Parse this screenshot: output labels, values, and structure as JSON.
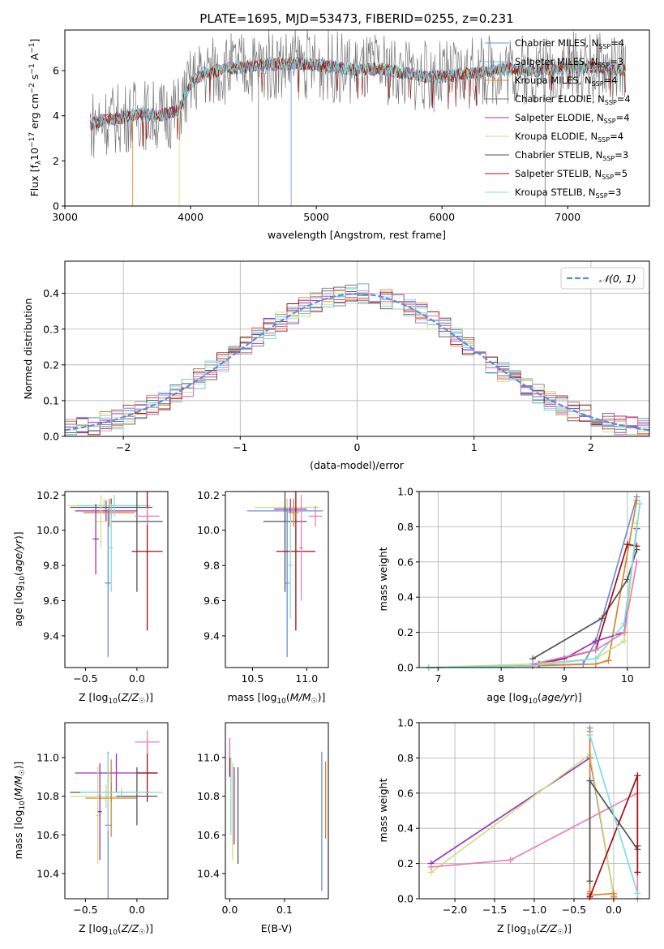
{
  "figure_title": "PLATE=1695, MJD=53473, FIBERID=0255, z=0.231",
  "colors": {
    "chabrier_miles": "#6b8fe0",
    "salpeter_miles": "#7fb8d9",
    "kroupa_miles": "#e0802a",
    "chabrier_elodie": "#777777",
    "salpeter_elodie": "#9b30c0",
    "kroupa_elodie": "#cfe07a",
    "chabrier_stelib": "#555555",
    "salpeter_stelib": "#a01010",
    "kroupa_stelib": "#7fdde0",
    "pink": "#e67fb8",
    "gauss": "#5b8dd9"
  },
  "chart_data": [
    {
      "id": "spectrum",
      "type": "line",
      "xlabel": "wavelength [Angstrom, rest frame]",
      "ylabel": "Flux [f_λ 10^-17 erg cm^-2 s^-1 A^-1]",
      "xlim": [
        3000,
        7650
      ],
      "ylim": [
        0,
        7.8
      ],
      "xticks": [
        "3000",
        "4000",
        "5000",
        "6000",
        "7000"
      ],
      "yticks": [
        "0",
        "2",
        "4",
        "6"
      ],
      "legend_position": "right",
      "legend": [
        {
          "label": "Chabrier MILES, N_SSP=4",
          "color": "#6b8fe0"
        },
        {
          "label": "Salpeter MILES, N_SSP=3",
          "color": "#7fb8d9"
        },
        {
          "label": "Kroupa MILES, N_SSP=4",
          "color": "#e0802a"
        },
        {
          "label": "Chabrier ELODIE, N_SSP=4",
          "color": "#777777"
        },
        {
          "label": "Salpeter ELODIE, N_SSP=4",
          "color": "#9b30c0"
        },
        {
          "label": "Kroupa ELODIE, N_SSP=4",
          "color": "#cfe07a"
        },
        {
          "label": "Chabrier STELIB, N_SSP=3",
          "color": "#555555"
        },
        {
          "label": "Salpeter STELIB, N_SSP=5",
          "color": "#a01010"
        },
        {
          "label": "Kroupa STELIB, N_SSP=3",
          "color": "#7fdde0"
        }
      ],
      "continuum": [
        [
          3200,
          3.6
        ],
        [
          3300,
          3.8
        ],
        [
          3450,
          3.9
        ],
        [
          3600,
          4.1
        ],
        [
          3750,
          4.0
        ],
        [
          3900,
          4.2
        ],
        [
          4000,
          5.4
        ],
        [
          4100,
          5.9
        ],
        [
          4300,
          6.1
        ],
        [
          4500,
          6.2
        ],
        [
          4700,
          6.3
        ],
        [
          4900,
          6.3
        ],
        [
          5100,
          6.2
        ],
        [
          5300,
          6.0
        ],
        [
          5500,
          6.1
        ],
        [
          5700,
          5.9
        ],
        [
          5900,
          5.7
        ],
        [
          6100,
          5.8
        ],
        [
          6300,
          5.9
        ],
        [
          6500,
          6.1
        ],
        [
          6700,
          6.0
        ],
        [
          6900,
          6.1
        ],
        [
          7100,
          6.2
        ],
        [
          7300,
          6.1
        ],
        [
          7450,
          6.0
        ]
      ]
    },
    {
      "id": "residuals",
      "type": "step",
      "xlabel": "(data-model)/error",
      "ylabel": "Normed distribution",
      "xlim": [
        -2.5,
        2.5
      ],
      "ylim": [
        0,
        0.49
      ],
      "xticks": [
        "−2",
        "−1",
        "0",
        "1",
        "2"
      ],
      "yticks": [
        "0.0",
        "0.1",
        "0.2",
        "0.3",
        "0.4"
      ],
      "grid": true,
      "legend_label": "𝒩(0, 1)",
      "legend_position": "top-right"
    },
    {
      "id": "age_vs_Z",
      "type": "errorbar",
      "xlabel": "Z [log10(Z/Z☉)]",
      "ylabel": "age  [log10(age/yr)]",
      "xlim": [
        -0.7,
        0.3
      ],
      "ylim": [
        9.22,
        10.22
      ],
      "xticks": [
        "−0.5",
        "0.0"
      ],
      "yticks": [
        "9.4",
        "9.6",
        "9.8",
        "10.0",
        "10.2"
      ],
      "points": [
        {
          "x": -0.32,
          "y": 10.14,
          "xerr": 0.35,
          "yerr": 0.04,
          "color": "#cfe07a"
        },
        {
          "x": -0.25,
          "y": 10.13,
          "xerr": 0.4,
          "yerr": 0.05,
          "color": "#555555"
        },
        {
          "x": -0.3,
          "y": 10.11,
          "xerr": 0.3,
          "yerr": 0.06,
          "color": "#9b30c0"
        },
        {
          "x": -0.27,
          "y": 10.1,
          "xerr": 0.25,
          "yerr": 0.08,
          "color": "#e0802a"
        },
        {
          "x": -0.22,
          "y": 10.14,
          "xerr": 0.35,
          "yerr": 0.06,
          "color": "#7fdde0"
        },
        {
          "x": -0.35,
          "y": 10.05,
          "xerr": 0.05,
          "yerr": 0.15,
          "color": "#cfe07a"
        },
        {
          "x": -0.4,
          "y": 9.95,
          "xerr": 0.03,
          "yerr": 0.2,
          "color": "#9b30c0"
        },
        {
          "x": -0.28,
          "y": 9.7,
          "xerr": 0.03,
          "yerr": 0.42,
          "color": "#6b8fe0"
        },
        {
          "x": 0.0,
          "y": 10.05,
          "xerr": 0.25,
          "yerr": 0.4,
          "color": "#555555"
        },
        {
          "x": 0.1,
          "y": 9.88,
          "xerr": 0.15,
          "yerr": 0.45,
          "color": "#a01010"
        },
        {
          "x": 0.1,
          "y": 10.08,
          "xerr": 0.12,
          "yerr": 0.05,
          "color": "#e67fb8"
        },
        {
          "x": -0.25,
          "y": 9.9,
          "xerr": 0.02,
          "yerr": 0.25,
          "color": "#7fdde0"
        }
      ]
    },
    {
      "id": "age_vs_mass",
      "type": "errorbar",
      "xlabel": "mass [log10(M/M☉)]",
      "ylabel": "",
      "xlim": [
        10.25,
        11.2
      ],
      "ylim": [
        9.22,
        10.22
      ],
      "xticks": [
        "10.5",
        "11.0"
      ],
      "yticks": [
        "9.4",
        "9.6",
        "9.8",
        "10.0",
        "10.2"
      ],
      "points": [
        {
          "x": 10.82,
          "y": 10.13,
          "xerr": 0.3,
          "yerr": 0.05,
          "color": "#cfe07a"
        },
        {
          "x": 10.8,
          "y": 10.11,
          "xerr": 0.35,
          "yerr": 0.06,
          "color": "#6b8fe0"
        },
        {
          "x": 10.85,
          "y": 10.12,
          "xerr": 0.15,
          "yerr": 0.06,
          "color": "#9b30c0"
        },
        {
          "x": 10.8,
          "y": 10.05,
          "xerr": 0.2,
          "yerr": 0.4,
          "color": "#555555"
        },
        {
          "x": 10.82,
          "y": 9.7,
          "xerr": 0.02,
          "yerr": 0.42,
          "color": "#6b8fe0"
        },
        {
          "x": 10.9,
          "y": 9.88,
          "xerr": 0.18,
          "yerr": 0.45,
          "color": "#a01010"
        },
        {
          "x": 11.08,
          "y": 10.08,
          "xerr": 0.06,
          "yerr": 0.06,
          "color": "#e67fb8"
        },
        {
          "x": 10.95,
          "y": 9.9,
          "xerr": 0.02,
          "yerr": 0.3,
          "color": "#e67fb8"
        },
        {
          "x": 10.85,
          "y": 9.8,
          "xerr": 0.02,
          "yerr": 0.3,
          "color": "#7fdde0"
        },
        {
          "x": 10.88,
          "y": 10.1,
          "xerr": 0.05,
          "yerr": 0.08,
          "color": "#e0802a"
        }
      ]
    },
    {
      "id": "cumulative_age",
      "type": "line",
      "xlabel": "age  [log10(age/yr)]",
      "ylabel": "mass weight",
      "xlim": [
        6.7,
        10.35
      ],
      "ylim": [
        0,
        1
      ],
      "xticks": [
        "7",
        "8",
        "9",
        "10"
      ],
      "yticks": [
        "0.0",
        "0.2",
        "0.4",
        "0.6",
        "0.8",
        "1.0"
      ],
      "grid": true,
      "series": [
        {
          "color": "#6b8fe0",
          "x": [
            6.85,
            8.5,
            9.3,
            9.5,
            10.15
          ],
          "y": [
            0.0,
            0.01,
            0.02,
            0.15,
            0.97
          ]
        },
        {
          "color": "#e0802a",
          "x": [
            6.85,
            8.5,
            9.5,
            9.7,
            10.15
          ],
          "y": [
            0.0,
            0.01,
            0.02,
            0.04,
            0.95
          ]
        },
        {
          "color": "#555555",
          "x": [
            8.5,
            9.6,
            10.0,
            10.15
          ],
          "y": [
            0.05,
            0.28,
            0.5,
            0.67
          ]
        },
        {
          "color": "#a01010",
          "x": [
            8.5,
            8.6,
            9.5,
            10.0,
            10.15
          ],
          "y": [
            0.01,
            0.02,
            0.1,
            0.7,
            0.69
          ]
        },
        {
          "color": "#9b30c0",
          "x": [
            8.5,
            9.0,
            9.5,
            9.95,
            10.15
          ],
          "y": [
            0.01,
            0.05,
            0.15,
            0.2,
            0.79
          ]
        },
        {
          "color": "#cfe07a",
          "x": [
            6.85,
            8.5,
            9.5,
            9.95,
            10.15
          ],
          "y": [
            0.0,
            0.02,
            0.05,
            0.15,
            0.82
          ]
        },
        {
          "color": "#7fdde0",
          "x": [
            6.85,
            8.5,
            9.5,
            9.95,
            10.2
          ],
          "y": [
            0.0,
            0.01,
            0.05,
            0.25,
            0.93
          ]
        },
        {
          "color": "#e67fb8",
          "x": [
            8.5,
            9.5,
            9.95,
            10.15
          ],
          "y": [
            0.02,
            0.1,
            0.2,
            0.6
          ]
        }
      ]
    },
    {
      "id": "mass_vs_Z",
      "type": "errorbar",
      "xlabel": "Z [log10(Z/Z☉)]",
      "ylabel": "mass [log10(M/M☉)]",
      "xlim": [
        -0.7,
        0.3
      ],
      "ylim": [
        10.27,
        11.18
      ],
      "xticks": [
        "−0.5",
        "0.0"
      ],
      "yticks": [
        "10.4",
        "10.6",
        "10.8",
        "11.0"
      ],
      "points": [
        {
          "x": -0.2,
          "y": 10.92,
          "xerr": 0.4,
          "yerr": 0.1,
          "color": "#9b30c0"
        },
        {
          "x": 0.1,
          "y": 10.92,
          "xerr": 0.1,
          "yerr": 0.15,
          "color": "#a01010"
        },
        {
          "x": 0.1,
          "y": 11.08,
          "xerr": 0.12,
          "yerr": 0.06,
          "color": "#e67fb8"
        },
        {
          "x": -0.25,
          "y": 10.82,
          "xerr": 0.4,
          "yerr": 0.05,
          "color": "#555555"
        },
        {
          "x": -0.3,
          "y": 10.8,
          "xerr": 0.35,
          "yerr": 0.06,
          "color": "#cfe07a"
        },
        {
          "x": -0.25,
          "y": 10.79,
          "xerr": 0.25,
          "yerr": 0.2,
          "color": "#e0802a"
        },
        {
          "x": -0.28,
          "y": 10.65,
          "xerr": 0.03,
          "yerr": 0.38,
          "color": "#6b8fe0"
        },
        {
          "x": -0.38,
          "y": 10.7,
          "xerr": 0.02,
          "yerr": 0.25,
          "color": "#cfe07a"
        },
        {
          "x": -0.36,
          "y": 10.72,
          "xerr": 0.02,
          "yerr": 0.25,
          "color": "#9b30c0"
        },
        {
          "x": -0.28,
          "y": 10.82,
          "xerr": 0.02,
          "yerr": 0.2,
          "color": "#7fdde0"
        },
        {
          "x": 0.0,
          "y": 10.8,
          "xerr": 0.2,
          "yerr": 0.15,
          "color": "#555555"
        },
        {
          "x": -0.15,
          "y": 10.82,
          "xerr": 0.4,
          "yerr": 0.02,
          "color": "#7fdde0"
        }
      ]
    },
    {
      "id": "mass_vs_ebv",
      "type": "errorbar",
      "xlabel": "E(B-V)",
      "ylabel": "",
      "xlim": [
        -0.008,
        0.18
      ],
      "ylim": [
        10.27,
        11.18
      ],
      "xticks": [
        "0.0",
        "0.1"
      ],
      "yticks": [
        "10.4",
        "10.6",
        "10.8",
        "11.0"
      ],
      "points": [
        {
          "x": 0.0,
          "y": 11.0,
          "xerr": 0.0,
          "yerr": 0.1,
          "color": "#a01010"
        },
        {
          "x": 0.0,
          "y": 11.05,
          "xerr": 0.0,
          "yerr": 0.05,
          "color": "#e67fb8"
        },
        {
          "x": 0.005,
          "y": 10.72,
          "xerr": 0.0,
          "yerr": 0.25,
          "color": "#cfe07a"
        },
        {
          "x": 0.008,
          "y": 10.75,
          "xerr": 0.0,
          "yerr": 0.2,
          "color": "#9b30c0"
        },
        {
          "x": 0.015,
          "y": 10.7,
          "xerr": 0.0,
          "yerr": 0.25,
          "color": "#555555"
        },
        {
          "x": 0.002,
          "y": 10.8,
          "xerr": 0.0,
          "yerr": 0.2,
          "color": "#7fdde0"
        },
        {
          "x": 0.168,
          "y": 10.67,
          "xerr": 0.0,
          "yerr": 0.36,
          "color": "#6b8fe0"
        },
        {
          "x": 0.175,
          "y": 10.78,
          "xerr": 0.0,
          "yerr": 0.2,
          "color": "#e0802a"
        }
      ]
    },
    {
      "id": "cumulative_Z",
      "type": "line",
      "xlabel": "Z [log10(Z/Z☉)]",
      "ylabel": "mass weight",
      "xlim": [
        -2.45,
        0.45
      ],
      "ylim": [
        0,
        1
      ],
      "xticks": [
        "−2.0",
        "−1.5",
        "−1.0",
        "−0.5",
        "0.0"
      ],
      "yticks": [
        "0.0",
        "0.2",
        "0.4",
        "0.6",
        "0.8",
        "1.0"
      ],
      "grid": true,
      "series": [
        {
          "color": "#9b30c0",
          "x": [
            -2.3,
            -0.3,
            0.0
          ],
          "y": [
            0.2,
            0.8,
            0.02
          ]
        },
        {
          "color": "#cfe07a",
          "x": [
            -2.3,
            -0.3,
            0.0
          ],
          "y": [
            0.15,
            0.82,
            0.02
          ]
        },
        {
          "color": "#e67fb8",
          "x": [
            -2.3,
            -1.3,
            0.3,
            0.3
          ],
          "y": [
            0.18,
            0.22,
            0.6,
            0.0
          ]
        },
        {
          "color": "#6b8fe0",
          "x": [
            -0.3,
            -0.3,
            -0.3
          ],
          "y": [
            0.02,
            0.03,
            0.97
          ]
        },
        {
          "color": "#e0802a",
          "x": [
            -0.3,
            -0.3,
            -0.3,
            0.0,
            0.0
          ],
          "y": [
            0.95,
            0.04,
            0.02,
            0.03,
            0.01
          ]
        },
        {
          "color": "#555555",
          "x": [
            -0.3,
            -0.3,
            0.3,
            0.3
          ],
          "y": [
            0.1,
            0.67,
            0.28,
            0.3
          ]
        },
        {
          "color": "#a01010",
          "x": [
            -0.3,
            0.3,
            0.3
          ],
          "y": [
            0.01,
            0.7,
            0.15
          ]
        },
        {
          "color": "#7fdde0",
          "x": [
            -0.3,
            0.3
          ],
          "y": [
            0.93,
            0.03
          ]
        }
      ]
    }
  ]
}
